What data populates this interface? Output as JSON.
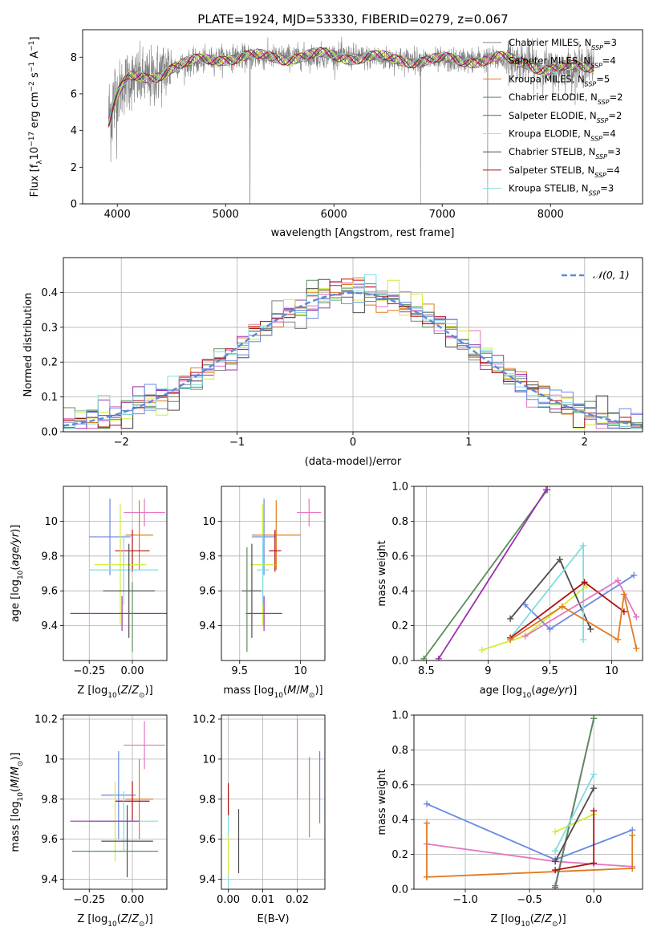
{
  "page": {
    "title": "PLATE=1924, MJD=53330, FIBERID=0279, z=0.067"
  },
  "colors": {
    "grid": "#b0b0b0",
    "models": [
      "#808080",
      "#e377c2",
      "#e07b20",
      "#5a8f5a",
      "#9b30b0",
      "#d4ec3a",
      "#4d4d4d",
      "#b01010",
      "#7fdde0"
    ],
    "extra": {
      "blue": "#6a89e0",
      "navy": "#6a89e0"
    }
  },
  "chart_data": [
    {
      "id": "spectrum",
      "type": "line",
      "title": "PLATE=1924, MJD=53330, FIBERID=0279, z=0.067",
      "xlabel": "wavelength [Angstrom, rest frame]",
      "ylabel_parts": [
        "Flux [f",
        "λ",
        "10",
        "−17",
        " erg cm",
        "−2",
        " s",
        "−1",
        " A",
        "−1",
        "]"
      ],
      "xlim": [
        3680,
        8850
      ],
      "ylim": [
        0,
        9.5
      ],
      "xticks": [
        4000,
        5000,
        6000,
        7000,
        8000
      ],
      "yticks": [
        0,
        2,
        4,
        6,
        8
      ],
      "grid": false,
      "legend_position": "top-right",
      "legend": [
        {
          "label": "Chabrier MILES, N",
          "sub": "SSP",
          "suffix": "=3",
          "color": "#808080"
        },
        {
          "label": "Salpeter MILES, N",
          "sub": "SSP",
          "suffix": "=4",
          "color": "#e377c2"
        },
        {
          "label": "Kroupa MILES, N",
          "sub": "SSP",
          "suffix": "=5",
          "color": "#e07b20"
        },
        {
          "label": "Chabrier ELODIE, N",
          "sub": "SSP",
          "suffix": "=2",
          "color": "#5a8f5a"
        },
        {
          "label": "Salpeter ELODIE, N",
          "sub": "SSP",
          "suffix": "=2",
          "color": "#9b30b0"
        },
        {
          "label": "Kroupa ELODIE, N",
          "sub": "SSP",
          "suffix": "=4",
          "color": "#d4ec3a"
        },
        {
          "label": "Chabrier STELIB, N",
          "sub": "SSP",
          "suffix": "=3",
          "color": "#4d4d4d"
        },
        {
          "label": "Salpeter STELIB, N",
          "sub": "SSP",
          "suffix": "=4",
          "color": "#b01010"
        },
        {
          "label": "Kroupa STELIB, N",
          "sub": "SSP",
          "suffix": "=3",
          "color": "#7fdde0"
        }
      ],
      "continuum": [
        [
          3920,
          4.6
        ],
        [
          3960,
          5.4
        ],
        [
          4000,
          6.0
        ],
        [
          4100,
          6.8
        ],
        [
          4300,
          6.8
        ],
        [
          4500,
          7.5
        ],
        [
          4800,
          7.8
        ],
        [
          5000,
          8.0
        ],
        [
          5500,
          8.0
        ],
        [
          6000,
          8.1
        ],
        [
          6500,
          7.9
        ],
        [
          7000,
          7.8
        ],
        [
          7500,
          7.9
        ],
        [
          7800,
          7.7
        ],
        [
          8000,
          7.3
        ],
        [
          8200,
          7.4
        ],
        [
          8400,
          7.6
        ]
      ],
      "spikes": [
        [
          5225,
          0
        ],
        [
          6800,
          0
        ],
        [
          7420,
          0
        ]
      ]
    },
    {
      "id": "residuals",
      "type": "histogram",
      "xlabel": "(data-model)/error",
      "ylabel": "Normed distribution",
      "xlim": [
        -2.5,
        2.5
      ],
      "ylim": [
        0,
        0.5
      ],
      "xticks": [
        -2,
        -1,
        0,
        1,
        2
      ],
      "yticks": [
        0,
        0.1,
        0.2,
        0.3,
        0.4
      ],
      "grid": true,
      "legend_position": "top-right",
      "legend": [
        {
          "label": "𝒩(0, 1)",
          "color": "#5b8bd8",
          "style": "dashed"
        }
      ],
      "bin_width": 0.1
    },
    {
      "id": "age-vs-Z",
      "type": "errorbar",
      "xlabel": "Z [log10(Z/Z⊙)]",
      "ylabel": "age [log10(age/yr)]",
      "xlim": [
        -0.4,
        0.2
      ],
      "ylim": [
        9.2,
        10.2
      ],
      "xticks": [
        -0.25,
        0.0
      ],
      "xtick_labels": [
        "−0.25",
        "0.00"
      ],
      "yticks": [
        9.4,
        9.6,
        9.8,
        10.0
      ],
      "grid": true,
      "points": [
        {
          "x": 0.07,
          "y": 10.05,
          "xerr": 0.12,
          "yerr": 0.08,
          "color": "#e377c2"
        },
        {
          "x": 0.04,
          "y": 9.92,
          "xerr": 0.08,
          "yerr": 0.2,
          "color": "#e07b20"
        },
        {
          "x": -0.13,
          "y": 9.91,
          "xerr": 0.12,
          "yerr": 0.22,
          "color": "#6a89e0"
        },
        {
          "x": 0.0,
          "y": 9.83,
          "xerr": 0.1,
          "yerr": 0.12,
          "color": "#b01010"
        },
        {
          "x": -0.07,
          "y": 9.75,
          "xerr": 0.15,
          "yerr": 0.35,
          "color": "#d4ec3a"
        },
        {
          "x": -0.05,
          "y": 9.72,
          "xerr": 0.2,
          "yerr": 0.2,
          "color": "#7fdde0"
        },
        {
          "x": -0.02,
          "y": 9.6,
          "xerr": 0.15,
          "yerr": 0.27,
          "color": "#4d4d4d"
        },
        {
          "x": -0.06,
          "y": 9.47,
          "xerr": 0.3,
          "yerr": 0.1,
          "color": "#9b30b0"
        },
        {
          "x": 0.0,
          "y": 9.45,
          "xerr": 0.0,
          "yerr": 0.2,
          "color": "#5a8f5a"
        }
      ]
    },
    {
      "id": "age-vs-mass",
      "type": "errorbar",
      "xlabel": "mass [log10(M/M⊙)]",
      "xlim": [
        9.35,
        10.2
      ],
      "ylim": [
        9.2,
        10.2
      ],
      "xticks": [
        9.5,
        10.0
      ],
      "yticks": [
        9.4,
        9.6,
        9.8,
        10.0
      ],
      "grid": true,
      "points": [
        {
          "x": 10.07,
          "y": 10.05,
          "xerr": 0.1,
          "yerr": 0.08,
          "color": "#e377c2"
        },
        {
          "x": 9.8,
          "y": 9.92,
          "xerr": 0.2,
          "yerr": 0.2,
          "color": "#e07b20"
        },
        {
          "x": 9.7,
          "y": 9.91,
          "xerr": 0.1,
          "yerr": 0.22,
          "color": "#6a89e0"
        },
        {
          "x": 9.79,
          "y": 9.83,
          "xerr": 0.05,
          "yerr": 0.12,
          "color": "#b01010"
        },
        {
          "x": 9.69,
          "y": 9.75,
          "xerr": 0.1,
          "yerr": 0.35,
          "color": "#d4ec3a"
        },
        {
          "x": 9.69,
          "y": 9.72,
          "xerr": 0.05,
          "yerr": 0.2,
          "color": "#7fdde0"
        },
        {
          "x": 9.6,
          "y": 9.6,
          "xerr": 0.08,
          "yerr": 0.27,
          "color": "#4d4d4d"
        },
        {
          "x": 9.7,
          "y": 9.47,
          "xerr": 0.15,
          "yerr": 0.1,
          "color": "#9b30b0"
        },
        {
          "x": 9.56,
          "y": 9.55,
          "xerr": 0.0,
          "yerr": 0.3,
          "color": "#5a8f5a"
        }
      ]
    },
    {
      "id": "mass-weight-vs-age",
      "type": "line",
      "xlabel": "age [log10(age/yr)]",
      "ylabel": "mass weight",
      "xlim": [
        8.4,
        10.25
      ],
      "ylim": [
        0,
        1.0
      ],
      "xticks": [
        8.5,
        9.0,
        9.5,
        10.0
      ],
      "yticks": [
        0.0,
        0.2,
        0.4,
        0.6,
        0.8,
        1.0
      ],
      "grid": true,
      "series": [
        {
          "color": "#5a8f5a",
          "points": [
            [
              8.48,
              0.01
            ],
            [
              9.48,
              0.98
            ]
          ]
        },
        {
          "color": "#9b30b0",
          "points": [
            [
              8.6,
              0.01
            ],
            [
              9.47,
              0.98
            ]
          ]
        },
        {
          "color": "#d4ec3a",
          "points": [
            [
              8.95,
              0.06
            ],
            [
              9.3,
              0.14
            ],
            [
              9.8,
              0.43
            ]
          ]
        },
        {
          "color": "#4d4d4d",
          "points": [
            [
              9.18,
              0.24
            ],
            [
              9.58,
              0.58
            ],
            [
              9.83,
              0.18
            ]
          ]
        },
        {
          "color": "#6a89e0",
          "points": [
            [
              9.3,
              0.32
            ],
            [
              9.5,
              0.18
            ],
            [
              10.18,
              0.49
            ]
          ]
        },
        {
          "color": "#7fdde0",
          "points": [
            [
              9.18,
              0.13
            ],
            [
              9.77,
              0.66
            ],
            [
              9.77,
              0.12
            ]
          ]
        },
        {
          "color": "#b01010",
          "points": [
            [
              9.18,
              0.13
            ],
            [
              9.78,
              0.45
            ],
            [
              10.1,
              0.28
            ]
          ]
        },
        {
          "color": "#e377c2",
          "points": [
            [
              9.3,
              0.14
            ],
            [
              10.05,
              0.46
            ],
            [
              10.2,
              0.25
            ]
          ]
        },
        {
          "color": "#e07b20",
          "points": [
            [
              9.18,
              0.12
            ],
            [
              9.6,
              0.31
            ],
            [
              10.05,
              0.12
            ],
            [
              10.1,
              0.38
            ],
            [
              10.2,
              0.07
            ]
          ]
        }
      ]
    },
    {
      "id": "mass-vs-Z",
      "type": "errorbar",
      "xlabel": "Z [log10(Z/Z⊙)]",
      "ylabel": "mass [log10(M/M⊙)]",
      "xlim": [
        -0.4,
        0.2
      ],
      "ylim": [
        9.35,
        10.22
      ],
      "xticks": [
        -0.25,
        0.0
      ],
      "xtick_labels": [
        "−0.25",
        "0.00"
      ],
      "yticks": [
        9.4,
        9.6,
        9.8,
        10.0,
        10.2
      ],
      "grid": true,
      "points": [
        {
          "x": 0.07,
          "y": 10.07,
          "xerr": 0.12,
          "yerr": 0.12,
          "color": "#e377c2"
        },
        {
          "x": 0.04,
          "y": 9.8,
          "xerr": 0.08,
          "yerr": 0.2,
          "color": "#e07b20"
        },
        {
          "x": -0.08,
          "y": 9.82,
          "xerr": 0.1,
          "yerr": 0.22,
          "color": "#6a89e0"
        },
        {
          "x": 0.0,
          "y": 9.79,
          "xerr": 0.1,
          "yerr": 0.1,
          "color": "#b01010"
        },
        {
          "x": -0.1,
          "y": 9.69,
          "xerr": 0.15,
          "yerr": 0.2,
          "color": "#d4ec3a"
        },
        {
          "x": -0.05,
          "y": 9.69,
          "xerr": 0.2,
          "yerr": 0.15,
          "color": "#7fdde0"
        },
        {
          "x": -0.03,
          "y": 9.59,
          "xerr": 0.15,
          "yerr": 0.18,
          "color": "#4d4d4d"
        },
        {
          "x": -0.16,
          "y": 9.69,
          "xerr": 0.2,
          "yerr": 0.0,
          "color": "#9b30b0"
        },
        {
          "x": -0.1,
          "y": 9.54,
          "xerr": 0.25,
          "yerr": 0.0,
          "color": "#5a8f5a"
        }
      ]
    },
    {
      "id": "mass-vs-ebv",
      "type": "errorbar",
      "xlabel": "E(B-V)",
      "xlim": [
        -0.002,
        0.028
      ],
      "ylim": [
        9.35,
        10.22
      ],
      "xticks": [
        0.0,
        0.01,
        0.02
      ],
      "xtick_labels": [
        "0.00",
        "0.01",
        "0.02"
      ],
      "yticks": [
        9.4,
        9.6,
        9.8,
        10.0,
        10.2
      ],
      "grid": true,
      "points": [
        {
          "x": 0.02,
          "y": 10.0,
          "xerr": 0.0,
          "yerr": 0.2,
          "color": "#e377c2"
        },
        {
          "x": 0.0265,
          "y": 9.86,
          "xerr": 0.0,
          "yerr": 0.18,
          "color": "#6a89e0"
        },
        {
          "x": 0.0235,
          "y": 9.81,
          "xerr": 0.0,
          "yerr": 0.2,
          "color": "#e07b20"
        },
        {
          "x": 0.003,
          "y": 9.59,
          "xerr": 0.0,
          "yerr": 0.16,
          "color": "#4d4d4d"
        },
        {
          "x": 0.0,
          "y": 9.6,
          "xerr": 0.0,
          "yerr": 0.25,
          "color": "#7fdde0"
        },
        {
          "x": 0.0,
          "y": 9.8,
          "xerr": 0.0,
          "yerr": 0.08,
          "color": "#b01010"
        },
        {
          "x": 0.0,
          "y": 9.52,
          "xerr": 0.0,
          "yerr": 0.1,
          "color": "#d4ec3a"
        }
      ]
    },
    {
      "id": "mass-weight-vs-Z",
      "type": "line",
      "xlabel": "Z [log10(Z/Z⊙)]",
      "ylabel": "mass weight",
      "xlim": [
        -1.4,
        0.38
      ],
      "ylim": [
        0,
        1.0
      ],
      "xticks": [
        -1.0,
        -0.5,
        0.0
      ],
      "xtick_labels": [
        "−1.0",
        "−0.5",
        "0.0"
      ],
      "yticks": [
        0.0,
        0.2,
        0.4,
        0.6,
        0.8,
        1.0
      ],
      "grid": true,
      "series": [
        {
          "color": "#6a89e0",
          "points": [
            [
              -1.3,
              0.49
            ],
            [
              -0.3,
              0.17
            ],
            [
              0.3,
              0.34
            ]
          ]
        },
        {
          "color": "#e377c2",
          "points": [
            [
              -1.3,
              0.26
            ],
            [
              -0.3,
              0.16
            ],
            [
              0.3,
              0.13
            ]
          ]
        },
        {
          "color": "#e07b20",
          "points": [
            [
              -1.3,
              0.07
            ],
            [
              -1.3,
              0.38
            ],
            [
              -1.3,
              0.07
            ],
            [
              0.3,
              0.12
            ],
            [
              0.3,
              0.31
            ]
          ]
        },
        {
          "color": "#9b30b0",
          "points": [
            [
              -0.3,
              0.01
            ],
            [
              0.0,
              0.98
            ]
          ]
        },
        {
          "color": "#5a8f5a",
          "points": [
            [
              -0.3,
              0.02
            ],
            [
              0.0,
              0.98
            ]
          ]
        },
        {
          "color": "#d4ec3a",
          "points": [
            [
              -0.3,
              0.33
            ],
            [
              0.0,
              0.43
            ]
          ]
        },
        {
          "color": "#4d4d4d",
          "points": [
            [
              -0.3,
              0.16
            ],
            [
              0.0,
              0.58
            ]
          ]
        },
        {
          "color": "#7fdde0",
          "points": [
            [
              -0.3,
              0.22
            ],
            [
              0.0,
              0.66
            ]
          ]
        },
        {
          "color": "#b01010",
          "points": [
            [
              -0.3,
              0.11
            ],
            [
              0.0,
              0.15
            ],
            [
              0.0,
              0.45
            ]
          ]
        }
      ]
    }
  ]
}
